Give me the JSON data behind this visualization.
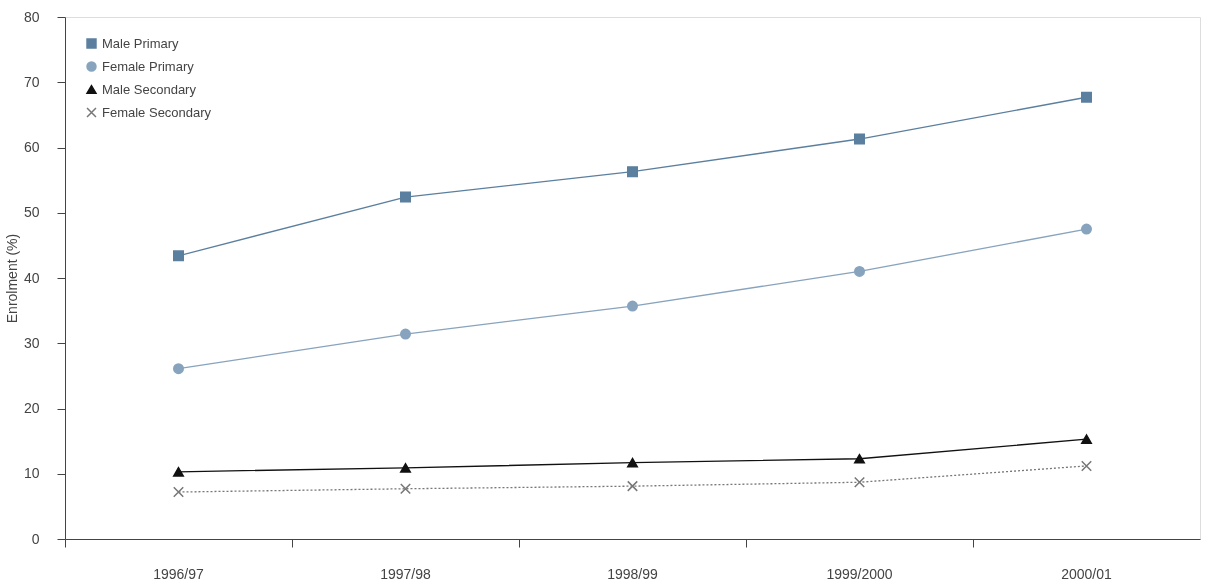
{
  "chart_data": {
    "type": "line",
    "ylabel": "Enrolment (%)",
    "categories": [
      "1996/97",
      "1997/98",
      "1998/99",
      "1999/2000",
      "2000/01"
    ],
    "series": [
      {
        "name": "Male Primary",
        "color": "#5b7f9e",
        "marker": "square",
        "line_style": "solid",
        "values": [
          43.4,
          52.4,
          56.3,
          61.3,
          67.7
        ]
      },
      {
        "name": "Female Primary",
        "color": "#87a3bd",
        "marker": "circle",
        "line_style": "solid",
        "values": [
          26.1,
          31.4,
          35.7,
          41.0,
          47.5
        ]
      },
      {
        "name": "Male Secondary",
        "color": "#111111",
        "marker": "triangle",
        "line_style": "solid",
        "values": [
          10.3,
          10.9,
          11.7,
          12.3,
          15.3
        ]
      },
      {
        "name": "Female Secondary",
        "color": "#777777",
        "marker": "cross",
        "line_style": "dotted",
        "values": [
          7.2,
          7.7,
          8.1,
          8.7,
          11.2
        ]
      }
    ],
    "ylim": [
      0,
      80
    ],
    "yticks": [
      0,
      10,
      20,
      30,
      40,
      50,
      60,
      70,
      80
    ],
    "grid": false,
    "legend": "top left"
  }
}
